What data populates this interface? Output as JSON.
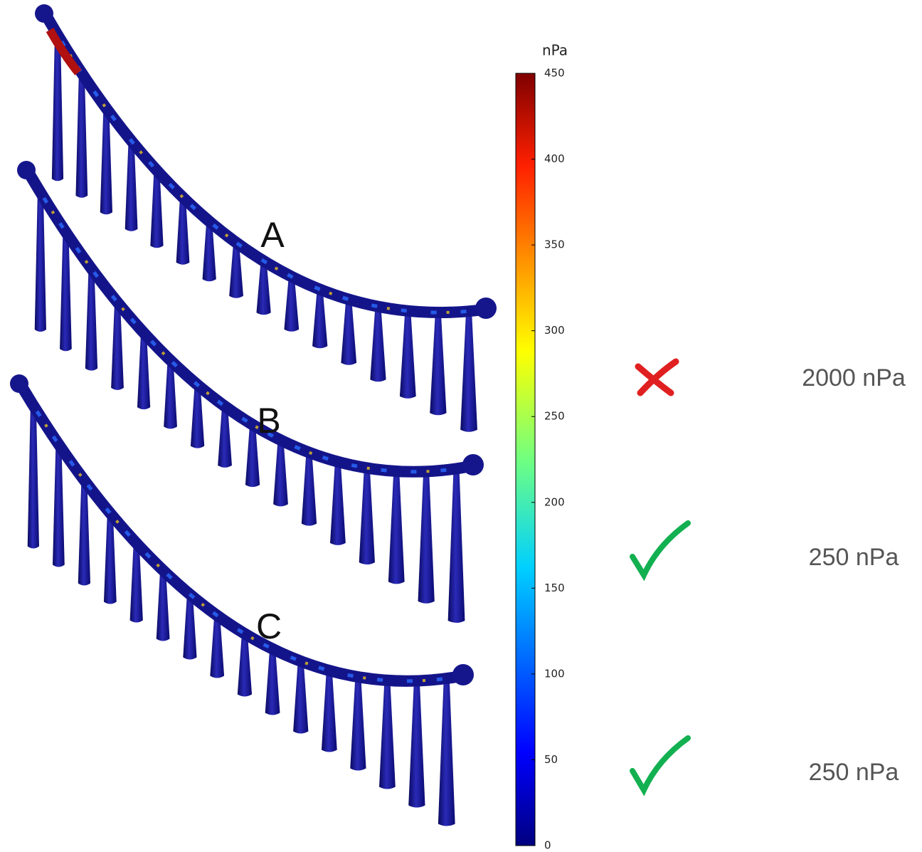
{
  "labels": [
    "A",
    "B",
    "C"
  ],
  "colorbar": {
    "unit": "nPa",
    "range": [
      0,
      450
    ],
    "ticks": [
      0,
      50,
      100,
      150,
      200,
      250,
      300,
      350,
      400,
      450
    ]
  },
  "results": [
    "2000 nPa",
    "250 nPa",
    "250 nPa"
  ]
}
